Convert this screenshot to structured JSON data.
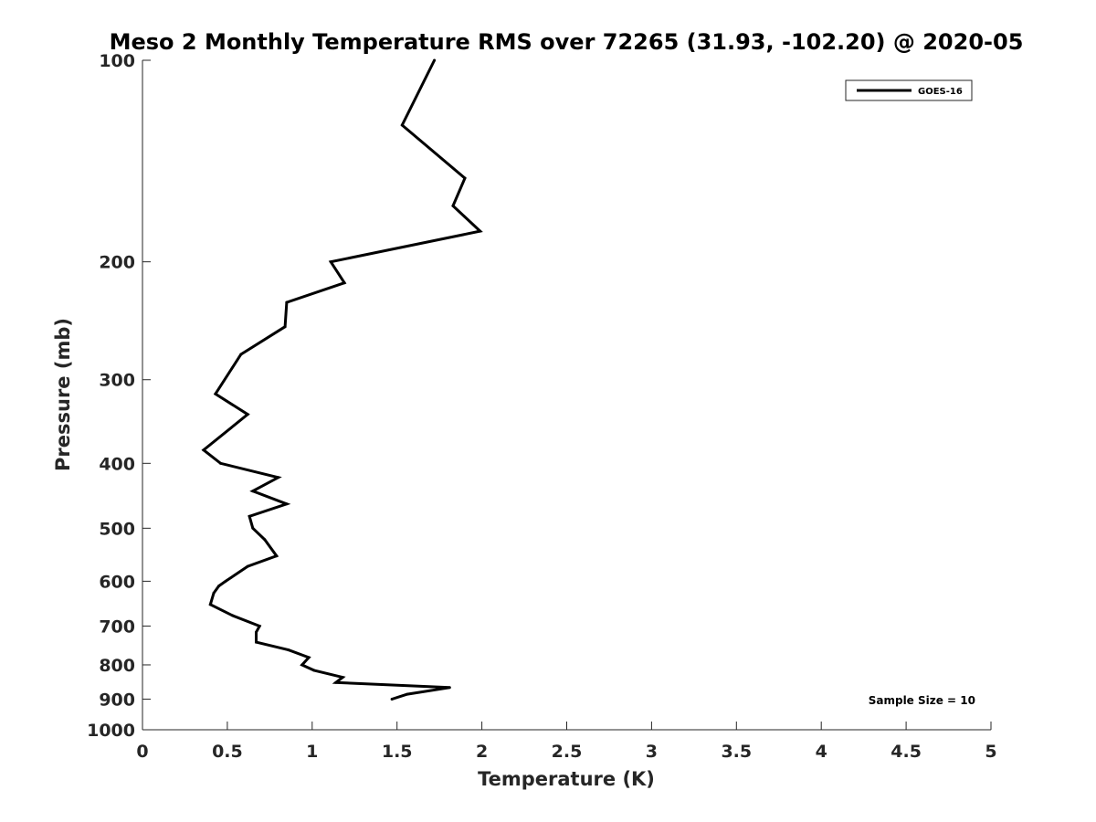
{
  "chart_data": {
    "type": "line",
    "title": "Meso 2 Monthly Temperature RMS over 72265 (31.93, -102.20) @ 2020-05",
    "xlabel": "Temperature (K)",
    "ylabel": "Pressure (mb)",
    "xlim": [
      0,
      5
    ],
    "ylim": [
      100,
      1000
    ],
    "yscale": "log",
    "y_reversed": true,
    "grid": false,
    "legend_position": "top-right",
    "x_ticks": [
      0,
      0.5,
      1,
      1.5,
      2,
      2.5,
      3,
      3.5,
      4,
      4.5,
      5
    ],
    "x_tick_labels": [
      "0",
      "0.5",
      "1",
      "1.5",
      "2",
      "2.5",
      "3",
      "3.5",
      "4",
      "4.5",
      "5"
    ],
    "y_ticks": [
      100,
      200,
      300,
      400,
      500,
      600,
      700,
      800,
      900,
      1000
    ],
    "y_tick_labels": [
      "100",
      "200",
      "300",
      "400",
      "500",
      "600",
      "700",
      "800",
      "900",
      "1000"
    ],
    "series": [
      {
        "name": "GOES-16",
        "color": "#000000",
        "points": [
          {
            "x": 1.72,
            "y": 100
          },
          {
            "x": 1.53,
            "y": 125
          },
          {
            "x": 1.9,
            "y": 150
          },
          {
            "x": 1.83,
            "y": 165
          },
          {
            "x": 1.99,
            "y": 180
          },
          {
            "x": 1.11,
            "y": 200
          },
          {
            "x": 1.19,
            "y": 215
          },
          {
            "x": 0.85,
            "y": 230
          },
          {
            "x": 0.84,
            "y": 250
          },
          {
            "x": 0.58,
            "y": 275
          },
          {
            "x": 0.43,
            "y": 315
          },
          {
            "x": 0.62,
            "y": 338
          },
          {
            "x": 0.36,
            "y": 382
          },
          {
            "x": 0.46,
            "y": 400
          },
          {
            "x": 0.8,
            "y": 420
          },
          {
            "x": 0.65,
            "y": 440
          },
          {
            "x": 0.85,
            "y": 460
          },
          {
            "x": 0.63,
            "y": 480
          },
          {
            "x": 0.65,
            "y": 500
          },
          {
            "x": 0.72,
            "y": 520
          },
          {
            "x": 0.79,
            "y": 550
          },
          {
            "x": 0.62,
            "y": 570
          },
          {
            "x": 0.49,
            "y": 600
          },
          {
            "x": 0.45,
            "y": 610
          },
          {
            "x": 0.42,
            "y": 625
          },
          {
            "x": 0.4,
            "y": 650
          },
          {
            "x": 0.53,
            "y": 675
          },
          {
            "x": 0.69,
            "y": 700
          },
          {
            "x": 0.67,
            "y": 715
          },
          {
            "x": 0.67,
            "y": 740
          },
          {
            "x": 0.86,
            "y": 760
          },
          {
            "x": 0.98,
            "y": 780
          },
          {
            "x": 0.94,
            "y": 800
          },
          {
            "x": 1.01,
            "y": 815
          },
          {
            "x": 1.18,
            "y": 835
          },
          {
            "x": 1.14,
            "y": 850
          },
          {
            "x": 1.81,
            "y": 865
          },
          {
            "x": 1.56,
            "y": 885
          },
          {
            "x": 1.47,
            "y": 900
          }
        ]
      }
    ],
    "annotation": "Sample Size = 10"
  }
}
